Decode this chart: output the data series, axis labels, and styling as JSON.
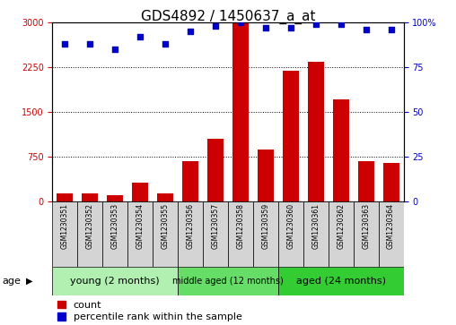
{
  "title": "GDS4892 / 1450637_a_at",
  "samples": [
    "GSM1230351",
    "GSM1230352",
    "GSM1230353",
    "GSM1230354",
    "GSM1230355",
    "GSM1230356",
    "GSM1230357",
    "GSM1230358",
    "GSM1230359",
    "GSM1230360",
    "GSM1230361",
    "GSM1230362",
    "GSM1230363",
    "GSM1230364"
  ],
  "counts": [
    130,
    130,
    110,
    310,
    130,
    680,
    1050,
    3000,
    870,
    2200,
    2350,
    1720,
    680,
    650
  ],
  "percentiles": [
    88,
    88,
    85,
    92,
    88,
    95,
    98,
    100,
    97,
    97,
    99,
    99,
    96,
    96
  ],
  "ylim_left": [
    0,
    3000
  ],
  "ylim_right": [
    0,
    100
  ],
  "yticks_left": [
    0,
    750,
    1500,
    2250,
    3000
  ],
  "yticks_right": [
    0,
    25,
    50,
    75,
    100
  ],
  "groups": [
    {
      "label": "young (2 months)",
      "start": 0,
      "end": 5,
      "color": "#b2f0b2",
      "fontsize": 8
    },
    {
      "label": "middle aged (12 months)",
      "start": 5,
      "end": 9,
      "color": "#66dd66",
      "fontsize": 7
    },
    {
      "label": "aged (24 months)",
      "start": 9,
      "end": 14,
      "color": "#33cc33",
      "fontsize": 8
    }
  ],
  "bar_color": "#cc0000",
  "dot_color": "#0000cc",
  "grid_color": "black",
  "left_tick_color": "#cc0000",
  "right_tick_color": "#0000cc",
  "title_fontsize": 11,
  "tick_fontsize": 7,
  "sample_fontsize": 5.5,
  "legend_fontsize": 8,
  "age_label": "age",
  "legend_count": "count",
  "legend_percentile": "percentile rank within the sample",
  "bg_color": "#ffffff"
}
